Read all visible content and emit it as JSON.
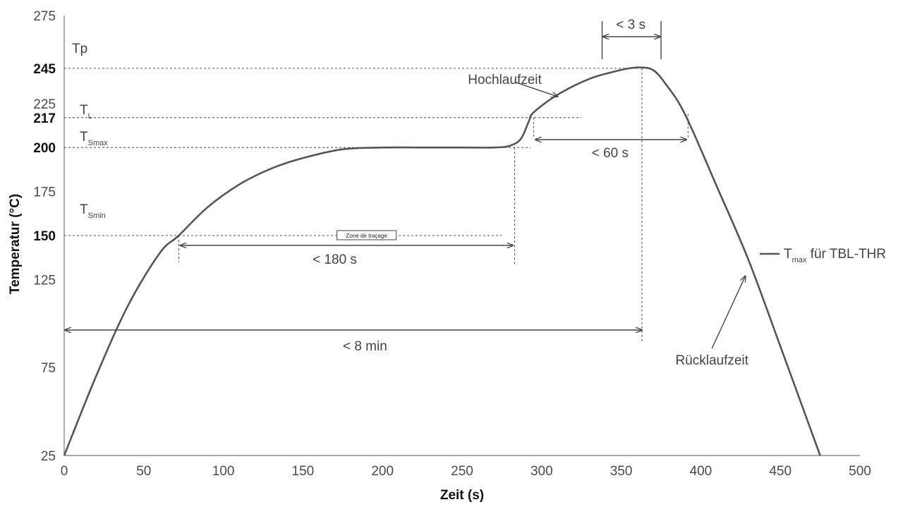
{
  "chart_data": {
    "type": "line",
    "title": "",
    "xlabel": "Zeit (s)",
    "ylabel": "Temperatur (°C)",
    "xlim": [
      0,
      500
    ],
    "ylim": [
      25,
      275
    ],
    "x_ticks": [
      0,
      50,
      100,
      150,
      200,
      250,
      300,
      350,
      400,
      450,
      500
    ],
    "y_ticks": [
      {
        "value": 25,
        "label": "25",
        "bold": false
      },
      {
        "value": 75,
        "label": "75",
        "bold": false
      },
      {
        "value": 125,
        "label": "125",
        "bold": false
      },
      {
        "value": 150,
        "label": "150",
        "bold": true
      },
      {
        "value": 175,
        "label": "175",
        "bold": false
      },
      {
        "value": 200,
        "label": "200",
        "bold": true
      },
      {
        "value": 217,
        "label": "217",
        "bold": true
      },
      {
        "value": 225,
        "label": "225",
        "bold": false
      },
      {
        "value": 245,
        "label": "245",
        "bold": true
      },
      {
        "value": 275,
        "label": "275",
        "bold": false
      }
    ],
    "series": [
      {
        "name": "Tmax für TBL-THR",
        "x": [
          0,
          20,
          40,
          60,
          72,
          90,
          110,
          130,
          150,
          175,
          200,
          225,
          250,
          270,
          280,
          287,
          292,
          295,
          310,
          330,
          345,
          355,
          362,
          370,
          378,
          390,
          410,
          430,
          450,
          475
        ],
        "y": [
          25,
          70,
          110,
          140,
          150,
          166,
          179,
          188,
          194,
          199,
          200,
          200,
          200,
          200,
          201,
          205,
          215,
          220,
          230,
          239,
          243,
          245,
          245.5,
          244,
          236,
          219,
          178,
          136,
          87,
          25
        ]
      }
    ],
    "reference_lines": [
      {
        "label": "Tp",
        "value": 245
      },
      {
        "label_main": "T",
        "label_sub": "L",
        "value": 217
      },
      {
        "label_main": "T",
        "label_sub": "Smax",
        "value": 200
      },
      {
        "label_main": "T",
        "label_sub": "Smin",
        "value": 150
      }
    ],
    "annotations": {
      "duration_3s": "< 3 s",
      "duration_60s": "< 60 s",
      "duration_180s": "< 180 s",
      "duration_8min": "< 8 min",
      "ramp_up": "Hochlaufzeit",
      "ramp_down": "Rücklaufzeit",
      "zone_label": "Zone de traçage"
    },
    "legend": {
      "main": "T",
      "sub": "max",
      "rest": " für TBL-THR",
      "placement": "right"
    },
    "grid": false
  }
}
